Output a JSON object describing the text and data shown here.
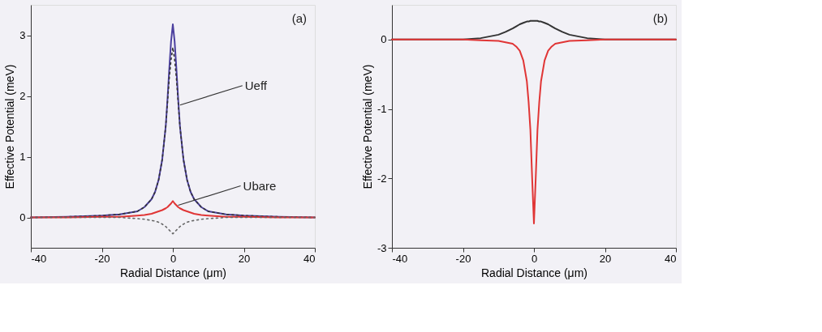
{
  "chart_data": [
    {
      "type": "line",
      "title": "(a)",
      "xlabel": "Radial Distance (μm)",
      "ylabel": "Effective Potential (meV)",
      "x": [
        -40,
        -30,
        -20,
        -15,
        -10,
        -8,
        -6,
        -5,
        -4,
        -3,
        -2,
        -1.5,
        -1,
        -0.5,
        0,
        0.5,
        1,
        1.5,
        2,
        3,
        4,
        5,
        6,
        8,
        10,
        15,
        20,
        30,
        40
      ],
      "series": [
        {
          "color": "#4b3f9e",
          "line_style": "solid",
          "values": [
            0,
            0.01,
            0.03,
            0.05,
            0.1,
            0.17,
            0.3,
            0.42,
            0.62,
            0.95,
            1.5,
            1.95,
            2.45,
            2.9,
            3.18,
            2.9,
            2.45,
            1.95,
            1.5,
            0.95,
            0.62,
            0.42,
            0.3,
            0.17,
            0.1,
            0.05,
            0.03,
            0.01,
            0
          ]
        },
        {
          "color": "#333333",
          "line_style": "dotted",
          "values": [
            0,
            0.01,
            0.03,
            0.05,
            0.1,
            0.17,
            0.3,
            0.42,
            0.62,
            0.95,
            1.5,
            1.9,
            2.3,
            2.6,
            2.8,
            2.6,
            2.3,
            1.9,
            1.5,
            0.95,
            0.62,
            0.42,
            0.3,
            0.17,
            0.1,
            0.05,
            0.03,
            0.01,
            0
          ]
        },
        {
          "color": "#e03535",
          "line_style": "solid",
          "values": [
            0,
            0,
            0.01,
            0.01,
            0.03,
            0.04,
            0.06,
            0.08,
            0.1,
            0.12,
            0.15,
            0.17,
            0.2,
            0.23,
            0.27,
            0.23,
            0.2,
            0.17,
            0.15,
            0.12,
            0.1,
            0.08,
            0.06,
            0.04,
            0.03,
            0.01,
            0.01,
            0,
            0
          ]
        },
        {
          "color": "#666666",
          "line_style": "dotted",
          "values": [
            0,
            0,
            0,
            0,
            -0.02,
            -0.03,
            -0.05,
            -0.06,
            -0.08,
            -0.11,
            -0.15,
            -0.18,
            -0.21,
            -0.24,
            -0.27,
            -0.24,
            -0.21,
            -0.18,
            -0.15,
            -0.11,
            -0.08,
            -0.06,
            -0.05,
            -0.03,
            -0.02,
            0,
            0,
            0,
            0
          ]
        }
      ],
      "xlim": [
        -40,
        40
      ],
      "xticks": [
        -40,
        -20,
        0,
        20,
        40
      ],
      "ylim": [
        -0.5,
        3.5
      ],
      "yticks": [
        0,
        1,
        2,
        3
      ],
      "grid": false,
      "annotations": [
        {
          "text": "Ueff",
          "x": 2,
          "y": 1.85
        },
        {
          "text": "Ubare",
          "x": 1.5,
          "y": 0.2
        }
      ]
    },
    {
      "type": "line",
      "title": "(b)",
      "xlabel": "Radial Distance (μm)",
      "ylabel": "Effective Potential (meV)",
      "x": [
        -40,
        -30,
        -20,
        -15,
        -10,
        -8,
        -6,
        -5,
        -4,
        -3,
        -2,
        -1.5,
        -1,
        -0.5,
        0,
        0.5,
        1,
        1.5,
        2,
        3,
        4,
        5,
        6,
        8,
        10,
        15,
        20,
        30,
        40
      ],
      "series": [
        {
          "color": "#333333",
          "line_style": "solid",
          "values": [
            0,
            0,
            0,
            0.02,
            0.07,
            0.11,
            0.16,
            0.19,
            0.22,
            0.24,
            0.26,
            0.26,
            0.27,
            0.27,
            0.27,
            0.27,
            0.27,
            0.26,
            0.26,
            0.24,
            0.22,
            0.19,
            0.16,
            0.11,
            0.07,
            0.02,
            0,
            0,
            0
          ]
        },
        {
          "color": "#e03535",
          "line_style": "solid",
          "values": [
            0,
            0,
            0,
            -0.01,
            -0.02,
            -0.04,
            -0.06,
            -0.1,
            -0.16,
            -0.3,
            -0.6,
            -0.9,
            -1.3,
            -2.0,
            -2.65,
            -2.0,
            -1.3,
            -0.9,
            -0.6,
            -0.3,
            -0.16,
            -0.1,
            -0.06,
            -0.04,
            -0.02,
            -0.01,
            0,
            0,
            0
          ]
        }
      ],
      "xlim": [
        -40,
        40
      ],
      "xticks": [
        -40,
        -20,
        0,
        20,
        40
      ],
      "ylim": [
        -3,
        0.5
      ],
      "yticks": [
        -3,
        -2,
        -1,
        0
      ],
      "grid": false
    }
  ]
}
